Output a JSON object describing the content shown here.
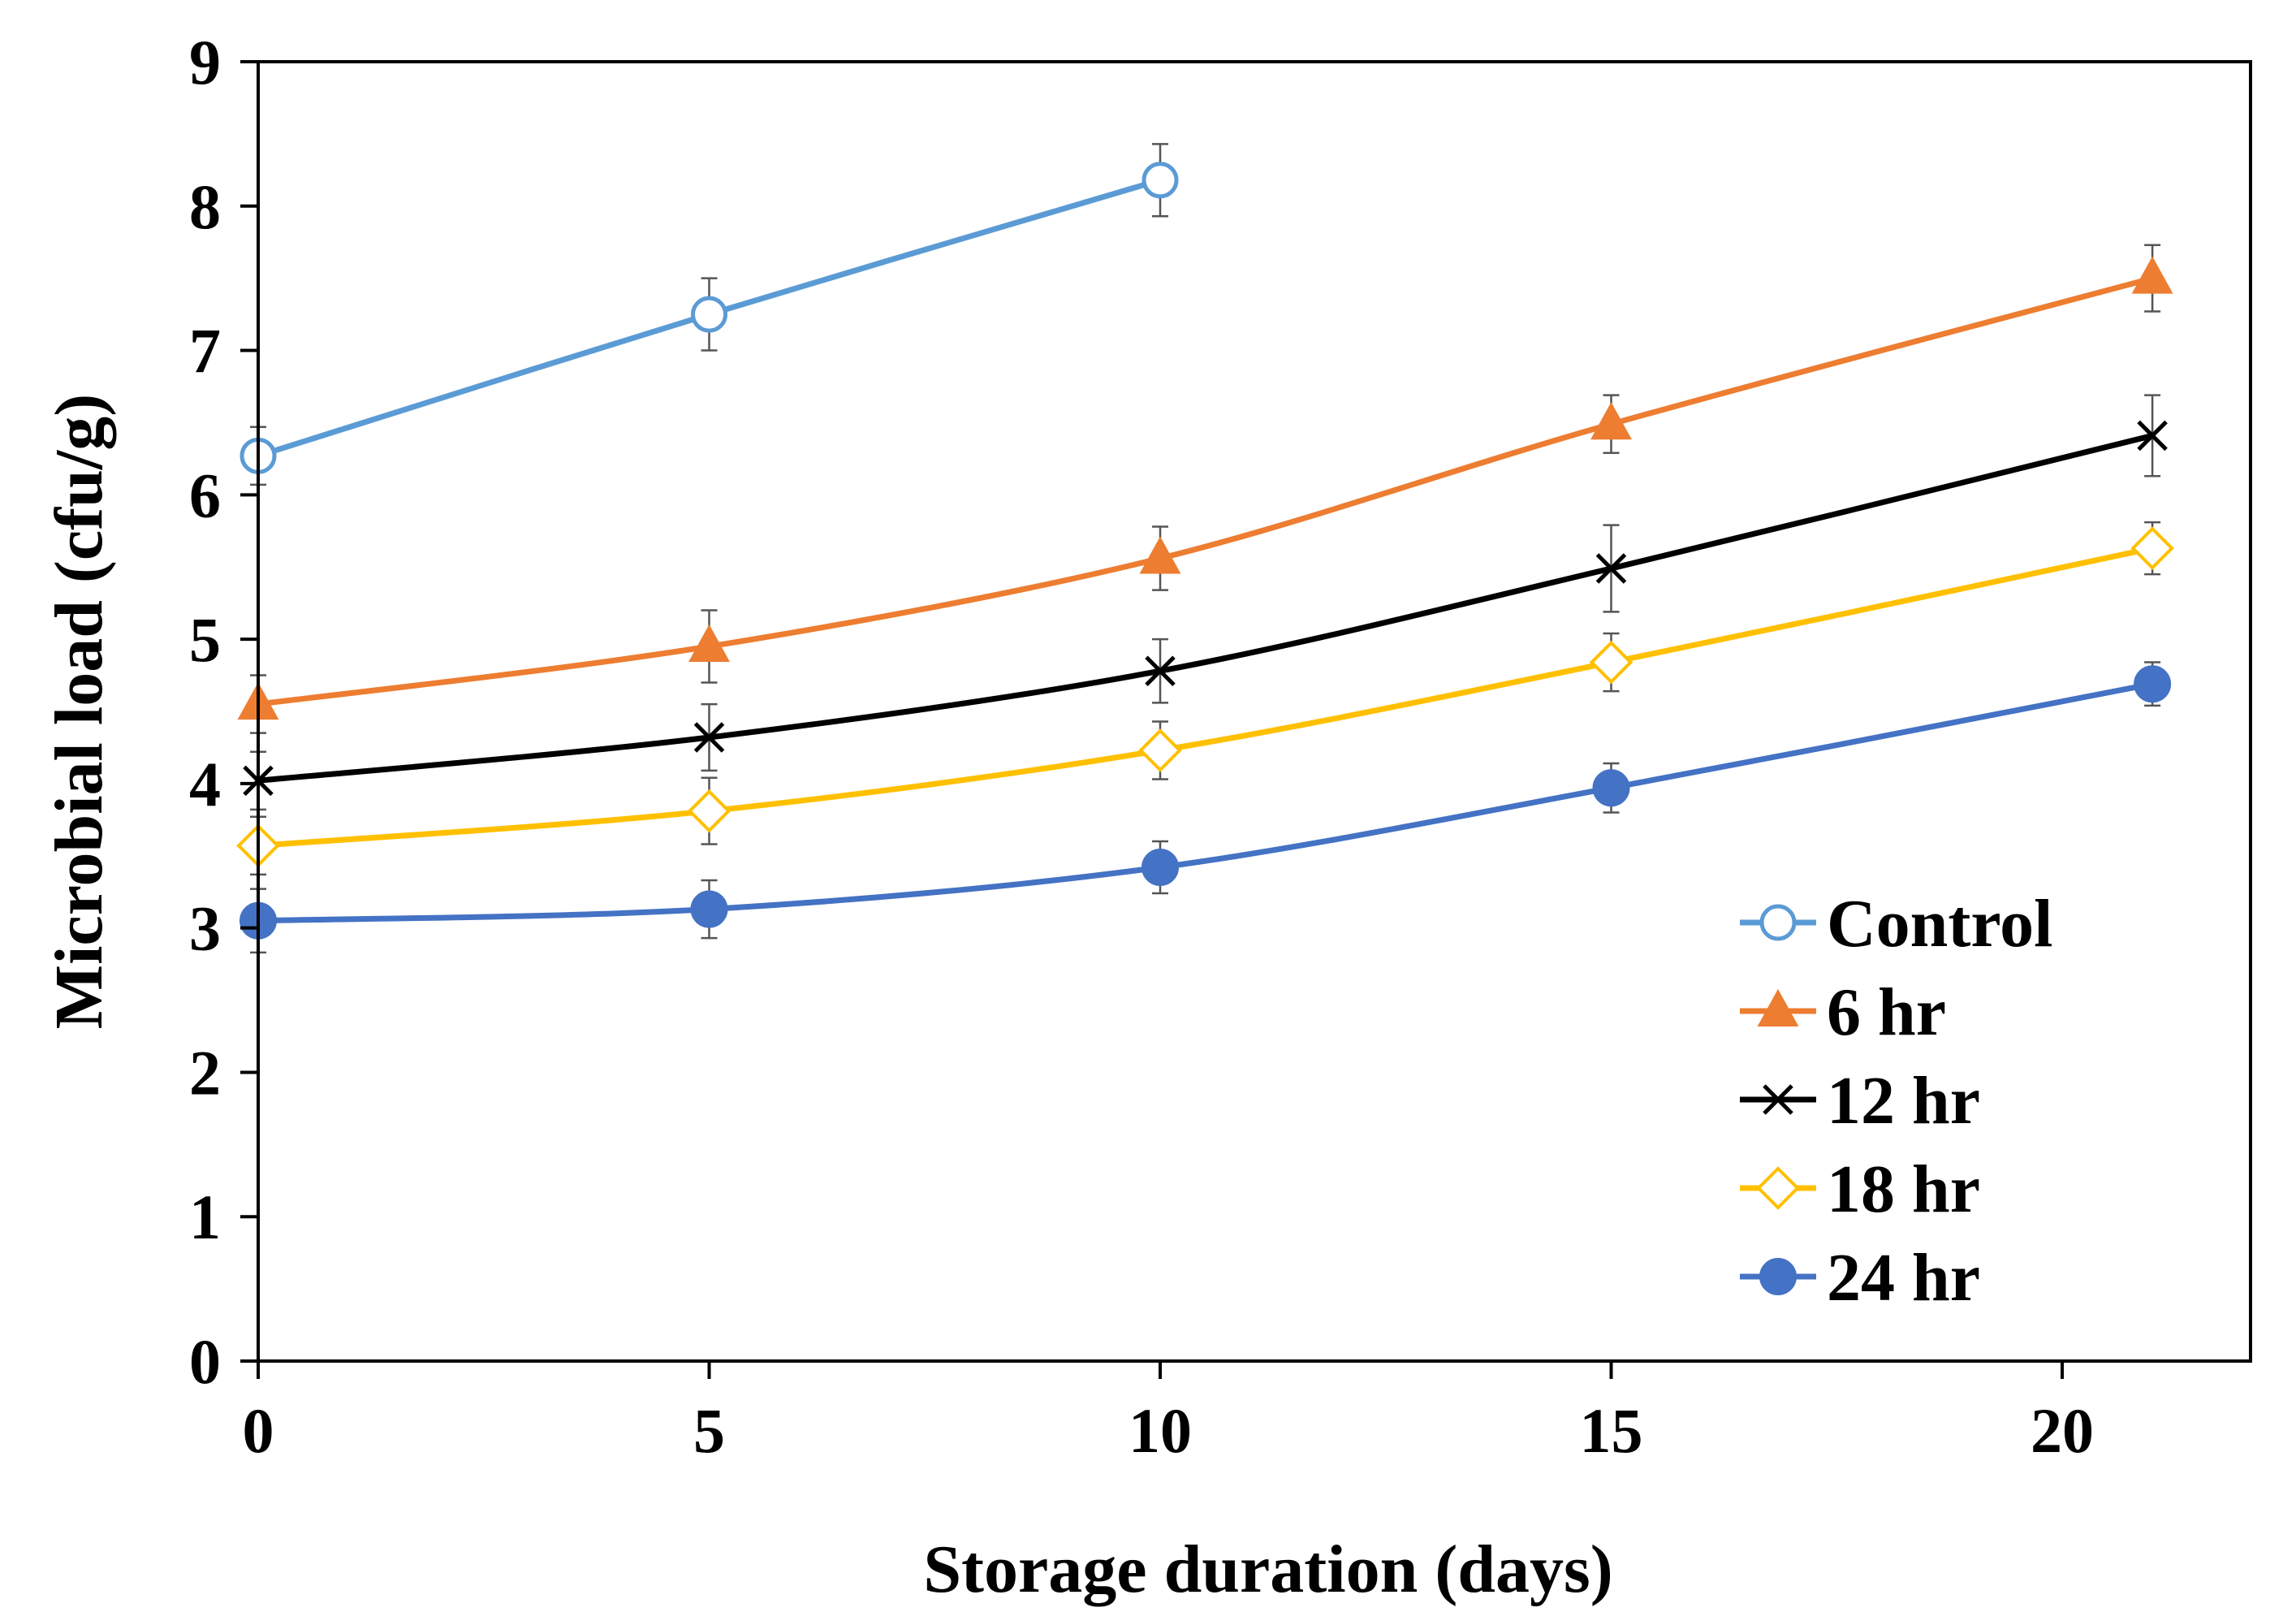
{
  "chart_data": {
    "type": "line",
    "title": "",
    "xlabel": "Storage duration (days)",
    "ylabel": "Microbial load (cfu/g)",
    "xlim": [
      0,
      22
    ],
    "ylim": [
      0,
      9
    ],
    "x_ticks": [
      0,
      5,
      10,
      15,
      20
    ],
    "y_ticks": [
      0,
      1,
      2,
      3,
      4,
      5,
      6,
      7,
      8,
      9
    ],
    "grid": false,
    "legend_position": "bottom-right",
    "series": [
      {
        "name": "Control",
        "color": "#5B9BD5",
        "marker": "open-circle",
        "x": [
          0,
          5,
          10
        ],
        "y": [
          6.27,
          7.25,
          8.18
        ],
        "error": [
          0.2,
          0.25,
          0.25
        ]
      },
      {
        "name": "6 hr",
        "color": "#ED7D31",
        "marker": "filled-triangle",
        "x": [
          0,
          5,
          10,
          15,
          21
        ],
        "y": [
          4.55,
          4.95,
          5.56,
          6.49,
          7.5
        ],
        "error": [
          0.2,
          0.25,
          0.22,
          0.2,
          0.23
        ]
      },
      {
        "name": "12 hr",
        "color": "#000000",
        "marker": "x",
        "x": [
          0,
          5,
          10,
          15,
          21
        ],
        "y": [
          4.02,
          4.32,
          4.78,
          5.49,
          6.41
        ],
        "error": [
          0.2,
          0.23,
          0.22,
          0.3,
          0.28
        ]
      },
      {
        "name": "18 hr",
        "color": "#FFC000",
        "marker": "open-diamond",
        "x": [
          0,
          5,
          10,
          15,
          21
        ],
        "y": [
          3.57,
          3.81,
          4.23,
          4.84,
          5.63
        ],
        "error": [
          0.2,
          0.23,
          0.2,
          0.2,
          0.18
        ]
      },
      {
        "name": "24 hr",
        "color": "#4472C4",
        "marker": "filled-circle",
        "x": [
          0,
          5,
          10,
          15,
          21
        ],
        "y": [
          3.05,
          3.13,
          3.42,
          3.97,
          4.69
        ],
        "error": [
          0.22,
          0.2,
          0.18,
          0.17,
          0.15
        ]
      }
    ]
  }
}
